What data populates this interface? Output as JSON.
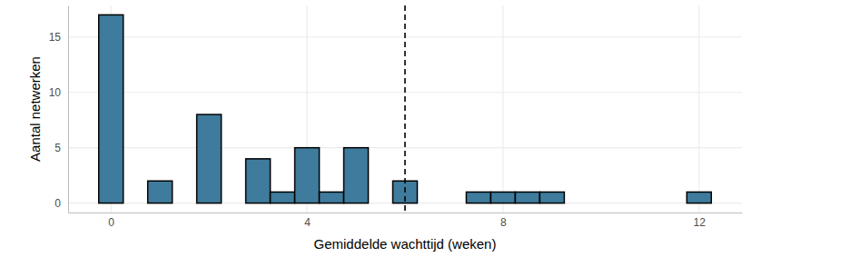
{
  "chart_data": {
    "type": "histogram",
    "x_label": "Gemiddelde wachttijd (weken)",
    "y_label": "Aantal netwerken",
    "bins": [
      -0.25,
      0.25,
      0.75,
      1.25,
      1.75,
      2.25,
      2.75,
      3.25,
      3.75,
      4.25,
      4.75,
      5.25,
      5.75,
      6.25,
      6.75,
      7.25,
      7.75,
      8.25,
      8.75,
      9.25,
      9.75,
      10.25,
      10.75,
      11.25,
      11.75,
      12.25
    ],
    "counts": [
      17,
      0,
      2,
      0,
      8,
      0,
      4,
      1,
      5,
      1,
      5,
      0,
      2,
      0,
      0,
      1,
      1,
      1,
      1,
      0,
      0,
      0,
      0,
      0,
      1
    ],
    "color": "#3f7b9c",
    "threshold": 6,
    "xlim": [
      -0.875,
      12.875
    ],
    "xticks": [
      0,
      4,
      8,
      12
    ],
    "ylim": [
      -0.85,
      17.85
    ],
    "yticks": [
      0,
      5,
      10,
      15
    ],
    "grid": true
  }
}
